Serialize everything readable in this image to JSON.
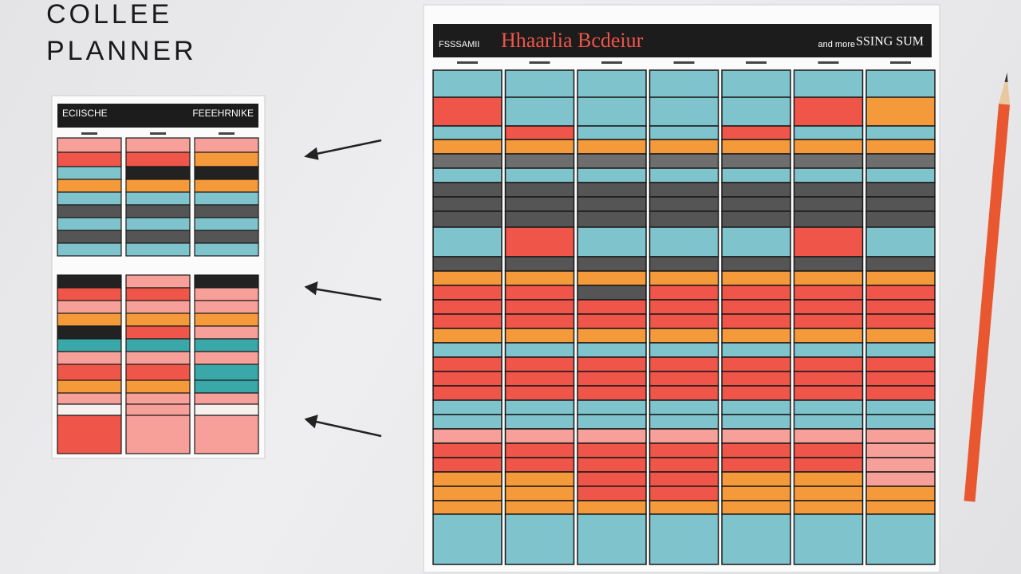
{
  "title_lines": [
    "COLLEE",
    "PLANNER"
  ],
  "small_planner": {
    "header_left": "ECIISCHE",
    "header_right": "FEEEHRNIKE"
  },
  "large_planner": {
    "header_left": "FSSSAMII",
    "title": "Hhaarlia Bcdeiur",
    "header_right_small": "and more",
    "header_right": "SSING SUM"
  }
}
